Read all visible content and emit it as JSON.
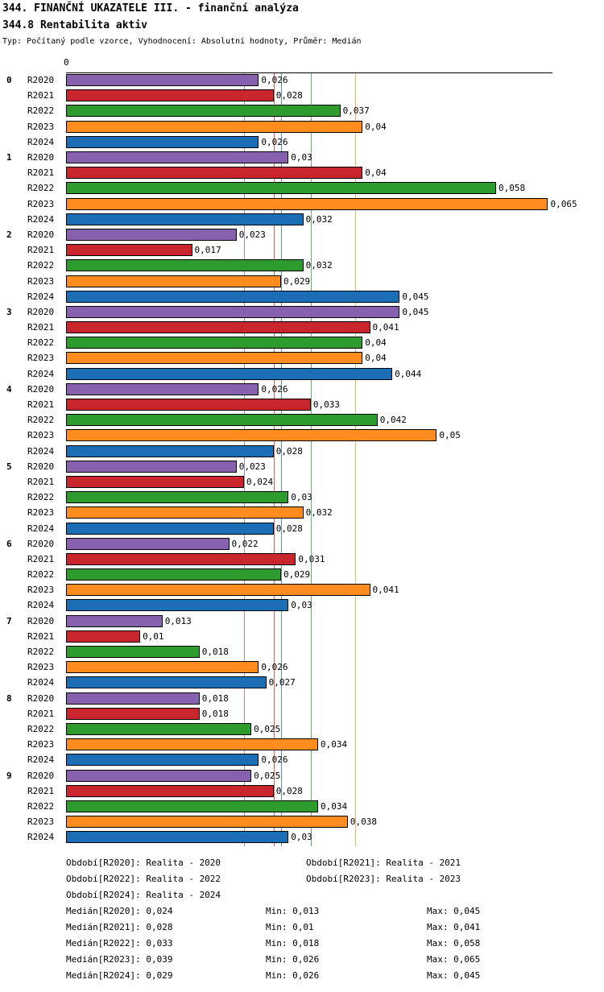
{
  "header": {
    "title": "344. FINANČNÍ UKAZATELE III. - finanční analýza",
    "subtitle": "344.8 Rentabilita aktiv",
    "meta": "Typ: Počítaný podle vzorce, Vyhodnocení: Absolutní hodnoty, Průměr: Medián"
  },
  "axis": {
    "zero_label": "0"
  },
  "chart_data": {
    "type": "bar",
    "orientation": "horizontal",
    "title": "344.8 Rentabilita aktiv",
    "xlim": [
      0,
      0.0656
    ],
    "grid": "median-lines",
    "legend_position": "bottom",
    "series_labels": [
      "R2020",
      "R2021",
      "R2022",
      "R2023",
      "R2024"
    ],
    "colors": {
      "R2020": "#8661AD",
      "R2021": "#C9252C",
      "R2022": "#2E9B2E",
      "R2023": "#FF8C1E",
      "R2024": "#1C6EB4"
    },
    "medians": [
      {
        "year": "R2020",
        "value": 0.024
      },
      {
        "year": "R2021",
        "value": 0.028
      },
      {
        "year": "R2022",
        "value": 0.033
      },
      {
        "year": "R2023",
        "value": 0.039
      },
      {
        "year": "R2024",
        "value": 0.029
      }
    ],
    "groups": [
      {
        "name": "0",
        "bars": [
          {
            "year": "R2020",
            "value": 0.026,
            "label": "0,026"
          },
          {
            "year": "R2021",
            "value": 0.028,
            "label": "0,028"
          },
          {
            "year": "R2022",
            "value": 0.037,
            "label": "0,037"
          },
          {
            "year": "R2023",
            "value": 0.04,
            "label": "0,04"
          },
          {
            "year": "R2024",
            "value": 0.026,
            "label": "0,026"
          }
        ]
      },
      {
        "name": "1",
        "bars": [
          {
            "year": "R2020",
            "value": 0.03,
            "label": "0,03"
          },
          {
            "year": "R2021",
            "value": 0.04,
            "label": "0,04"
          },
          {
            "year": "R2022",
            "value": 0.058,
            "label": "0,058"
          },
          {
            "year": "R2023",
            "value": 0.065,
            "label": "0,065"
          },
          {
            "year": "R2024",
            "value": 0.032,
            "label": "0,032"
          }
        ]
      },
      {
        "name": "2",
        "bars": [
          {
            "year": "R2020",
            "value": 0.023,
            "label": "0,023"
          },
          {
            "year": "R2021",
            "value": 0.017,
            "label": "0,017"
          },
          {
            "year": "R2022",
            "value": 0.032,
            "label": "0,032"
          },
          {
            "year": "R2023",
            "value": 0.029,
            "label": "0,029"
          },
          {
            "year": "R2024",
            "value": 0.045,
            "label": "0,045"
          }
        ]
      },
      {
        "name": "3",
        "bars": [
          {
            "year": "R2020",
            "value": 0.045,
            "label": "0,045"
          },
          {
            "year": "R2021",
            "value": 0.041,
            "label": "0,041"
          },
          {
            "year": "R2022",
            "value": 0.04,
            "label": "0,04"
          },
          {
            "year": "R2023",
            "value": 0.04,
            "label": "0,04"
          },
          {
            "year": "R2024",
            "value": 0.044,
            "label": "0,044"
          }
        ]
      },
      {
        "name": "4",
        "bars": [
          {
            "year": "R2020",
            "value": 0.026,
            "label": "0,026"
          },
          {
            "year": "R2021",
            "value": 0.033,
            "label": "0,033"
          },
          {
            "year": "R2022",
            "value": 0.042,
            "label": "0,042"
          },
          {
            "year": "R2023",
            "value": 0.05,
            "label": "0,05"
          },
          {
            "year": "R2024",
            "value": 0.028,
            "label": "0,028"
          }
        ]
      },
      {
        "name": "5",
        "bars": [
          {
            "year": "R2020",
            "value": 0.023,
            "label": "0,023"
          },
          {
            "year": "R2021",
            "value": 0.024,
            "label": "0,024"
          },
          {
            "year": "R2022",
            "value": 0.03,
            "label": "0,03"
          },
          {
            "year": "R2023",
            "value": 0.032,
            "label": "0,032"
          },
          {
            "year": "R2024",
            "value": 0.028,
            "label": "0,028"
          }
        ]
      },
      {
        "name": "6",
        "bars": [
          {
            "year": "R2020",
            "value": 0.022,
            "label": "0,022"
          },
          {
            "year": "R2021",
            "value": 0.031,
            "label": "0,031"
          },
          {
            "year": "R2022",
            "value": 0.029,
            "label": "0,029"
          },
          {
            "year": "R2023",
            "value": 0.041,
            "label": "0,041"
          },
          {
            "year": "R2024",
            "value": 0.03,
            "label": "0,03"
          }
        ]
      },
      {
        "name": "7",
        "bars": [
          {
            "year": "R2020",
            "value": 0.013,
            "label": "0,013"
          },
          {
            "year": "R2021",
            "value": 0.01,
            "label": "0,01"
          },
          {
            "year": "R2022",
            "value": 0.018,
            "label": "0,018"
          },
          {
            "year": "R2023",
            "value": 0.026,
            "label": "0,026"
          },
          {
            "year": "R2024",
            "value": 0.027,
            "label": "0,027"
          }
        ]
      },
      {
        "name": "8",
        "bars": [
          {
            "year": "R2020",
            "value": 0.018,
            "label": "0,018"
          },
          {
            "year": "R2021",
            "value": 0.018,
            "label": "0,018"
          },
          {
            "year": "R2022",
            "value": 0.025,
            "label": "0,025"
          },
          {
            "year": "R2023",
            "value": 0.034,
            "label": "0,034"
          },
          {
            "year": "R2024",
            "value": 0.026,
            "label": "0,026"
          }
        ]
      },
      {
        "name": "9",
        "bars": [
          {
            "year": "R2020",
            "value": 0.025,
            "label": "0,025"
          },
          {
            "year": "R2021",
            "value": 0.028,
            "label": "0,028"
          },
          {
            "year": "R2022",
            "value": 0.034,
            "label": "0,034"
          },
          {
            "year": "R2023",
            "value": 0.038,
            "label": "0,038"
          },
          {
            "year": "R2024",
            "value": 0.03,
            "label": "0,03"
          }
        ]
      }
    ]
  },
  "legend": {
    "periods": [
      "Období[R2020]: Realita - 2020",
      "Období[R2021]: Realita - 2021",
      "Období[R2022]: Realita - 2022",
      "Období[R2023]: Realita - 2023",
      "Období[R2024]: Realita - 2024"
    ],
    "stats": [
      {
        "median": "Medián[R2020]: 0,024",
        "min": "Min: 0,013",
        "max": "Max: 0,045"
      },
      {
        "median": "Medián[R2021]: 0,028",
        "min": "Min: 0,01",
        "max": "Max: 0,041"
      },
      {
        "median": "Medián[R2022]: 0,033",
        "min": "Min: 0,018",
        "max": "Max: 0,058"
      },
      {
        "median": "Medián[R2023]: 0,039",
        "min": "Min: 0,026",
        "max": "Max: 0,065"
      },
      {
        "median": "Medián[R2024]: 0,029",
        "min": "Min: 0,026",
        "max": "Max: 0,045"
      }
    ]
  }
}
